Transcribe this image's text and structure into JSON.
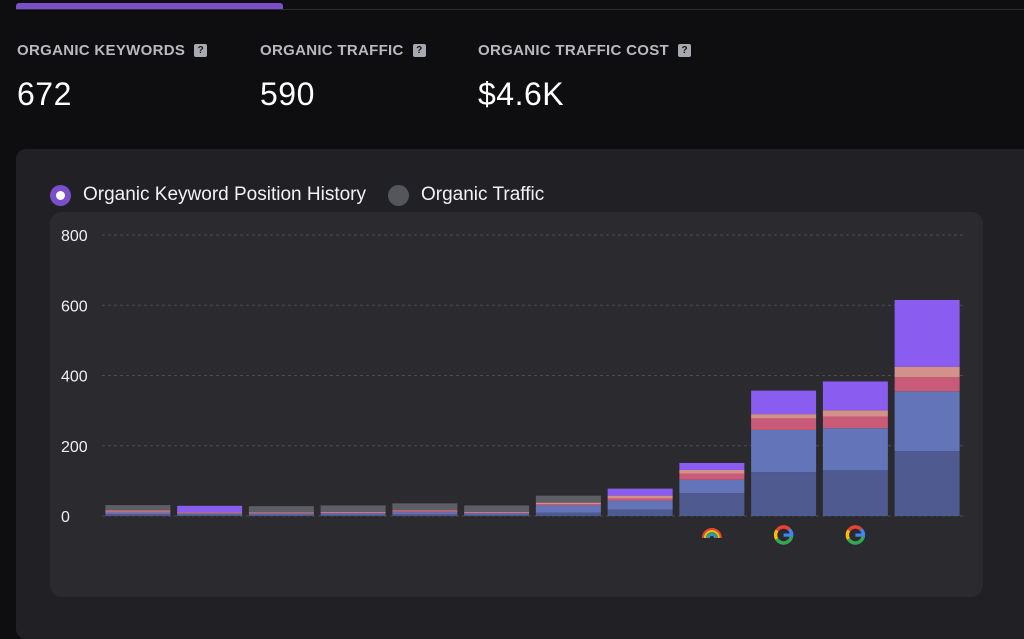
{
  "metrics": [
    {
      "label": "ORGANIC KEYWORDS",
      "value": "672"
    },
    {
      "label": "ORGANIC TRAFFIC",
      "value": "590"
    },
    {
      "label": "ORGANIC TRAFFIC COST",
      "value": "$4.6K"
    }
  ],
  "help_glyph": "?",
  "toggle": {
    "options": [
      {
        "label": "Organic Keyword Position History",
        "selected": true
      },
      {
        "label": "Organic Traffic",
        "selected": false
      }
    ]
  },
  "colors": {
    "accent": "#7a4fc9",
    "segments": [
      "#4f5a90",
      "#6474b8",
      "#c95a78",
      "#d4908a",
      "#8b5cf0"
    ],
    "muted": "#5e5e66"
  },
  "chart_data": {
    "type": "bar",
    "stacked": true,
    "ylim": [
      0,
      800
    ],
    "yticks": [
      0,
      200,
      400,
      600,
      800
    ],
    "grid": true,
    "title": "",
    "xlabel": "",
    "ylabel": "",
    "bars": [
      {
        "segments": [
          5,
          5,
          3,
          3,
          0
        ],
        "top": 15
      },
      {
        "segments": [
          4,
          3,
          2,
          2,
          18
        ]
      },
      {
        "segments": [
          4,
          3,
          2,
          2,
          0
        ],
        "top": 17
      },
      {
        "segments": [
          4,
          4,
          2,
          2,
          0
        ],
        "top": 18
      },
      {
        "segments": [
          5,
          6,
          3,
          2,
          0
        ],
        "top": 20
      },
      {
        "segments": [
          4,
          4,
          2,
          2,
          0
        ],
        "top": 18
      },
      {
        "segments": [
          10,
          20,
          4,
          4,
          0
        ],
        "top": 20
      },
      {
        "segments": [
          18,
          26,
          6,
          8,
          20
        ]
      },
      {
        "segments": [
          65,
          38,
          18,
          10,
          20
        ],
        "marker": "rainbow-arc-icon"
      },
      {
        "segments": [
          125,
          120,
          33,
          12,
          67
        ],
        "marker": "google-icon"
      },
      {
        "segments": [
          130,
          120,
          33,
          18,
          82
        ],
        "marker": "google-icon"
      },
      {
        "segments": [
          185,
          170,
          40,
          30,
          190
        ]
      }
    ]
  }
}
